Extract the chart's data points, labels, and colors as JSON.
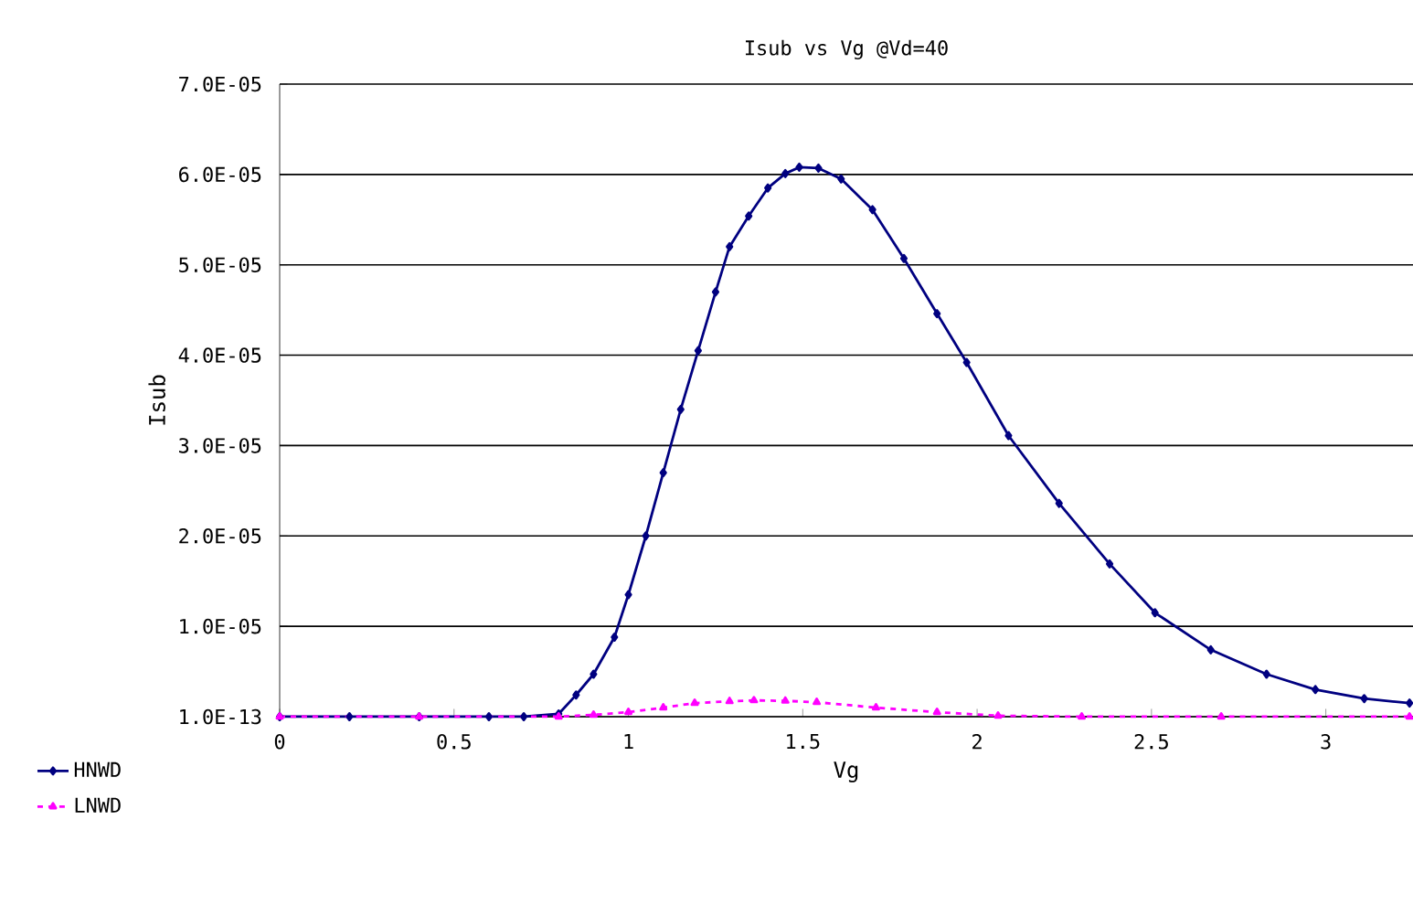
{
  "chart_data": {
    "type": "line",
    "title": "Isub vs Vg @Vd=40",
    "xlabel": "Vg",
    "ylabel": "Isub",
    "xlim": [
      0,
      3.25
    ],
    "xticks": [
      0,
      0.5,
      1,
      1.5,
      2,
      2.5,
      3
    ],
    "ylim": [
      0,
      7e-05
    ],
    "yticks": [
      {
        "value": 0,
        "label": "1.0E-13"
      },
      {
        "value": 1e-05,
        "label": "1.0E-05"
      },
      {
        "value": 2e-05,
        "label": "2.0E-05"
      },
      {
        "value": 3e-05,
        "label": "3.0E-05"
      },
      {
        "value": 4e-05,
        "label": "4.0E-05"
      },
      {
        "value": 5e-05,
        "label": "5.0E-05"
      },
      {
        "value": 6e-05,
        "label": "6.0E-05"
      },
      {
        "value": 7e-05,
        "label": "7.0E-05"
      }
    ],
    "grid": "y",
    "legend": "bottom left",
    "series": [
      {
        "name": "HNWD",
        "color": "#000080",
        "marker": "diamond",
        "line_style": "solid",
        "x": [
          0,
          0.2,
          0.4,
          0.6,
          0.7,
          0.8,
          0.85,
          0.9,
          0.96,
          1.0,
          1.05,
          1.1,
          1.15,
          1.2,
          1.25,
          1.29,
          1.345,
          1.4,
          1.45,
          1.49,
          1.545,
          1.61,
          1.7,
          1.79,
          1.885,
          1.97,
          2.09,
          2.235,
          2.38,
          2.51,
          2.67,
          2.83,
          2.97,
          3.11,
          3.24
        ],
        "values": [
          0,
          0,
          0,
          0,
          0,
          3e-07,
          2.4e-06,
          4.7e-06,
          8.8e-06,
          1.35e-05,
          2e-05,
          2.7e-05,
          3.4e-05,
          4.05e-05,
          4.7e-05,
          5.2e-05,
          5.54e-05,
          5.85e-05,
          6.01e-05,
          6.08e-05,
          6.07e-05,
          5.95e-05,
          5.61e-05,
          5.07e-05,
          4.46e-05,
          3.92e-05,
          3.11e-05,
          2.36e-05,
          1.69e-05,
          1.15e-05,
          7.4e-06,
          4.7e-06,
          3e-06,
          2e-06,
          1.5e-06
        ]
      },
      {
        "name": "LNWD",
        "color": "#ff00ff",
        "marker": "triangle",
        "line_style": "dashed",
        "x": [
          0,
          0.4,
          0.8,
          0.9,
          1.0,
          1.1,
          1.19,
          1.29,
          1.36,
          1.45,
          1.54,
          1.71,
          1.885,
          2.06,
          2.3,
          2.7,
          3.24
        ],
        "values": [
          0,
          0,
          0,
          2e-07,
          5e-07,
          1e-06,
          1.5e-06,
          1.7e-06,
          1.8e-06,
          1.75e-06,
          1.6e-06,
          1e-06,
          5e-07,
          1e-07,
          0,
          0,
          0
        ]
      }
    ]
  }
}
